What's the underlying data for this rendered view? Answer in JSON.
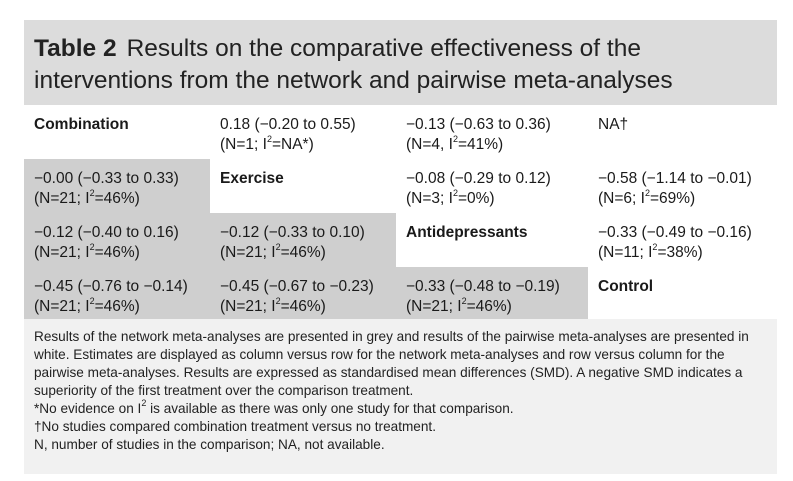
{
  "table": {
    "label": "Table 2",
    "title_line1": "Results on the comparative effectiveness of the",
    "title_line2": "interventions from the network and pairwise meta-analyses",
    "rows": [
      [
        {
          "text": "Combination",
          "head": true,
          "grey": false
        },
        {
          "text": "0.18 (−0.20 to 0.55)",
          "text2a": "(N=1; I",
          "text2b": "=NA*)",
          "grey": false
        },
        {
          "text": "−0.13 (−0.63 to 0.36)",
          "text2a": "(N=4, I",
          "text2b": "=41%)",
          "grey": false
        },
        {
          "text": "NA†",
          "grey": false
        }
      ],
      [
        {
          "text": "−0.00 (−0.33 to 0.33)",
          "text2a": "(N=21; I",
          "text2b": "=46%)",
          "grey": true
        },
        {
          "text": "Exercise",
          "head": true,
          "grey": false
        },
        {
          "text": "−0.08 (−0.29 to 0.12)",
          "text2a": "(N=3; I",
          "text2b": "=0%)",
          "grey": false
        },
        {
          "text": "−0.58 (−1.14 to −0.01)",
          "text2a": "(N=6; I",
          "text2b": "=69%)",
          "grey": false
        }
      ],
      [
        {
          "text": "−0.12 (−0.40 to 0.16)",
          "text2a": "(N=21; I",
          "text2b": "=46%)",
          "grey": true
        },
        {
          "text": "−0.12 (−0.33 to 0.10)",
          "text2a": "(N=21; I",
          "text2b": "=46%)",
          "grey": true
        },
        {
          "text": "Antidepressants",
          "head": true,
          "grey": false
        },
        {
          "text": "−0.33 (−0.49 to −0.16)",
          "text2a": "(N=11; I",
          "text2b": "=38%)",
          "grey": false
        }
      ],
      [
        {
          "text": "−0.45 (−0.76 to −0.14)",
          "text2a": "(N=21; I",
          "text2b": "=46%)",
          "grey": true
        },
        {
          "text": "−0.45 (−0.67 to −0.23)",
          "text2a": "(N=21; I",
          "text2b": "=46%)",
          "grey": true
        },
        {
          "text": "−0.33 (−0.48 to −0.19)",
          "text2a": "(N=21; I",
          "text2b": "=46%)",
          "grey": true
        },
        {
          "text": "Control",
          "head": true,
          "grey": false
        }
      ]
    ],
    "sup": "2"
  },
  "notes": {
    "para1": "Results of the network meta-analyses are presented in grey and results of the pairwise meta-analyses are presented in white. Estimates are displayed as column versus row for the network meta-analyses and row versus column for the pairwise meta-analyses. Results are expressed as standardised mean differences (SMD). A negative SMD indicates a superiority of the first treatment over the comparison treatment.",
    "fn_star_a": "*No evidence on I",
    "fn_star_b": " is available as there was only one study for that comparison.",
    "fn_dagger": "†No studies compared combination treatment versus no treatment.",
    "fn_abbrev": "N, number of studies in the comparison; NA, not available."
  },
  "colors": {
    "grey_cell": "#cfcfcf",
    "header_band": "#dcdcdc",
    "notes_band": "#f1f1f1"
  }
}
